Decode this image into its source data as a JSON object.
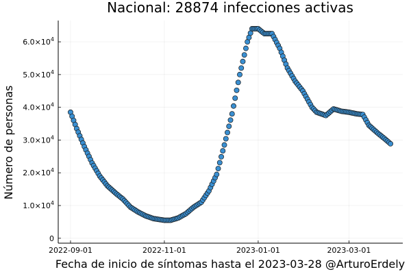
{
  "chart_data": {
    "type": "scatter",
    "title": "Nacional:  28874 infecciones activas",
    "xlabel": "Fecha de inicio de síntomas hasta el 2023-03-28 @ArturoErdely",
    "ylabel": "Número de personas",
    "x_start": "2022-09-01",
    "x_end": "2023-03-28",
    "xlim": [
      "2022-08-24",
      "2023-04-05"
    ],
    "ylim": [
      -1500,
      66500
    ],
    "grid": true,
    "legend": "none",
    "marker_color": "#3a8fd1",
    "x_ticks": [
      {
        "date": "2022-09-01",
        "label": "2022-09-01"
      },
      {
        "date": "2022-11-01",
        "label": "2022-11-01"
      },
      {
        "date": "2023-01-01",
        "label": "2023-01-01"
      },
      {
        "date": "2023-03-01",
        "label": "2023-03-01"
      }
    ],
    "y_ticks": [
      {
        "value": 0,
        "mant": "0",
        "exp": ""
      },
      {
        "value": 10000,
        "mant": "1.0×10",
        "exp": "4"
      },
      {
        "value": 20000,
        "mant": "2.0×10",
        "exp": "4"
      },
      {
        "value": 30000,
        "mant": "3.0×10",
        "exp": "4"
      },
      {
        "value": 40000,
        "mant": "4.0×10",
        "exp": "4"
      },
      {
        "value": 50000,
        "mant": "5.0×10",
        "exp": "4"
      },
      {
        "value": 60000,
        "mant": "6.0×10",
        "exp": "4"
      }
    ],
    "anchors": [
      [
        "2022-09-01",
        38500
      ],
      [
        "2022-09-05",
        33500
      ],
      [
        "2022-09-10",
        28000
      ],
      [
        "2022-09-15",
        23000
      ],
      [
        "2022-09-20",
        19000
      ],
      [
        "2022-09-25",
        16000
      ],
      [
        "2022-10-01",
        13500
      ],
      [
        "2022-10-05",
        12000
      ],
      [
        "2022-10-10",
        9500
      ],
      [
        "2022-10-15",
        8000
      ],
      [
        "2022-10-20",
        6800
      ],
      [
        "2022-10-25",
        6000
      ],
      [
        "2022-11-01",
        5500
      ],
      [
        "2022-11-05",
        5500
      ],
      [
        "2022-11-10",
        6200
      ],
      [
        "2022-11-15",
        7500
      ],
      [
        "2022-11-20",
        9500
      ],
      [
        "2022-11-25",
        11000
      ],
      [
        "2022-11-30",
        14500
      ],
      [
        "2022-12-05",
        19500
      ],
      [
        "2022-12-10",
        28500
      ],
      [
        "2022-12-15",
        38000
      ],
      [
        "2022-12-20",
        50000
      ],
      [
        "2022-12-25",
        60000
      ],
      [
        "2022-12-28",
        64000
      ],
      [
        "2023-01-01",
        64000
      ],
      [
        "2023-01-05",
        62500
      ],
      [
        "2023-01-10",
        62500
      ],
      [
        "2023-01-15",
        58000
      ],
      [
        "2023-01-20",
        52000
      ],
      [
        "2023-01-25",
        48000
      ],
      [
        "2023-01-30",
        45000
      ],
      [
        "2023-02-05",
        40000
      ],
      [
        "2023-02-08",
        38500
      ],
      [
        "2023-02-14",
        37500
      ],
      [
        "2023-02-19",
        39500
      ],
      [
        "2023-02-24",
        38800
      ],
      [
        "2023-03-01",
        38500
      ],
      [
        "2023-03-06",
        38000
      ],
      [
        "2023-03-10",
        37800
      ],
      [
        "2023-03-14",
        34500
      ],
      [
        "2023-03-20",
        32000
      ],
      [
        "2023-03-24",
        30500
      ],
      [
        "2023-03-28",
        28874
      ]
    ]
  }
}
